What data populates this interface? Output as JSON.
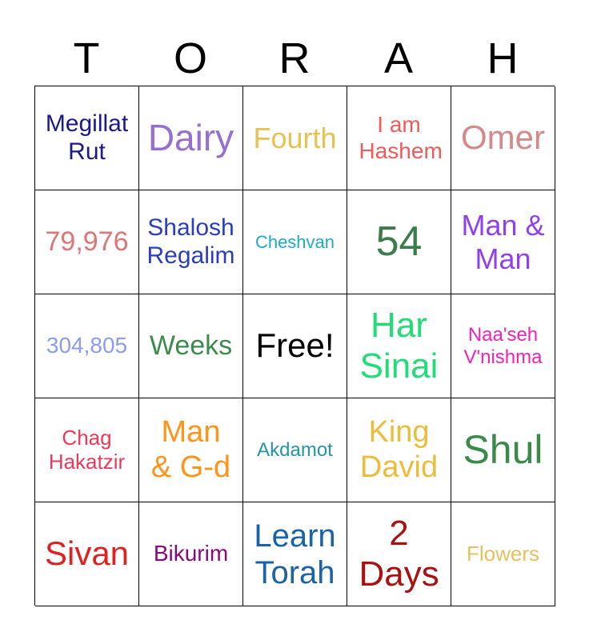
{
  "header": [
    "T",
    "O",
    "R",
    "A",
    "H"
  ],
  "cells": [
    {
      "text": "Megillat Rut",
      "color": "#1a1a8c"
    },
    {
      "text": "Dairy",
      "color": "#9670d0"
    },
    {
      "text": "Fourth",
      "color": "#e8c250"
    },
    {
      "text": "I am Hashem",
      "color": "#f05a5a"
    },
    {
      "text": "Omer",
      "color": "#d48a8a"
    },
    {
      "text": "79,976",
      "color": "#e07575"
    },
    {
      "text": "Shalosh Regalim",
      "color": "#2a3cc0"
    },
    {
      "text": "Cheshvan",
      "color": "#1eaac8"
    },
    {
      "text": "54",
      "color": "#3a7d4a"
    },
    {
      "text": "Man & Man",
      "color": "#9040f0"
    },
    {
      "text": "304,805",
      "color": "#8c9cf0"
    },
    {
      "text": "Weeks",
      "color": "#3d8a4d"
    },
    {
      "text": "Free!",
      "color": "#000000"
    },
    {
      "text": "Har Sinai",
      "color": "#22dd77"
    },
    {
      "text": "Naa'seh V'nishma",
      "color": "#ee22bb"
    },
    {
      "text": "Chag Hakatzir",
      "color": "#f03858"
    },
    {
      "text": "Man & G-d",
      "color": "#ff9418"
    },
    {
      "text": "Akdamot",
      "color": "#2494a8"
    },
    {
      "text": "King David",
      "color": "#ecbc3a"
    },
    {
      "text": "Shul",
      "color": "#3a8a4a"
    },
    {
      "text": "Sivan",
      "color": "#dd2222"
    },
    {
      "text": "Bikurim",
      "color": "#8a0a78"
    },
    {
      "text": "Learn Torah",
      "color": "#1a62aa"
    },
    {
      "text": "2 Days",
      "color": "#aa1111"
    },
    {
      "text": "Flowers",
      "color": "#e8c060"
    }
  ]
}
